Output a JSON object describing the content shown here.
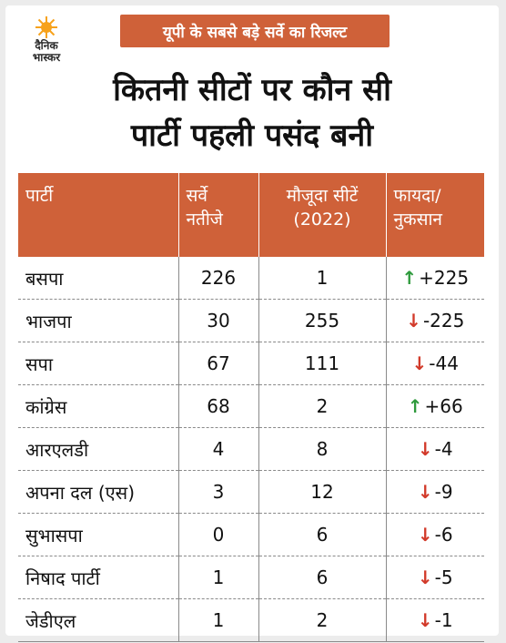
{
  "logo": {
    "line1": "दैनिक",
    "line2": "भास्कर"
  },
  "banner": "यूपी के सबसे बड़े सर्वे का रिजल्ट",
  "title": {
    "line1": "कितनी सीटों पर कौन सी",
    "line2": "पार्टी पहली पसंद बनी"
  },
  "headers": {
    "party": "पार्टी",
    "survey_l1": "सर्वे",
    "survey_l2": "नतीजे",
    "current_l1": "मौजूदा सीटें",
    "current_l2": "(2022)",
    "change_l1": "फायदा/",
    "change_l2": "नुकसान"
  },
  "colors": {
    "accent": "#cf6139",
    "gain": "#2e9a3c",
    "loss": "#d23a2a"
  },
  "rows": [
    {
      "party": "बसपा",
      "survey": "226",
      "current": "1",
      "change": "+225",
      "direction": "up"
    },
    {
      "party": "भाजपा",
      "survey": "30",
      "current": "255",
      "change": "-225",
      "direction": "down"
    },
    {
      "party": "सपा",
      "survey": "67",
      "current": "111",
      "change": "-44",
      "direction": "down"
    },
    {
      "party": "कांग्रेस",
      "survey": "68",
      "current": "2",
      "change": "+66",
      "direction": "up"
    },
    {
      "party": "आरएलडी",
      "survey": "4",
      "current": "8",
      "change": "-4",
      "direction": "down"
    },
    {
      "party": "अपना दल (एस)",
      "survey": "3",
      "current": "12",
      "change": "-9",
      "direction": "down"
    },
    {
      "party": "सुभासपा",
      "survey": "0",
      "current": "6",
      "change": "-6",
      "direction": "down"
    },
    {
      "party": "निषाद पार्टी",
      "survey": "1",
      "current": "6",
      "change": "-5",
      "direction": "down"
    },
    {
      "party": "जेडीएल",
      "survey": "1",
      "current": "2",
      "change": "-1",
      "direction": "down"
    }
  ]
}
